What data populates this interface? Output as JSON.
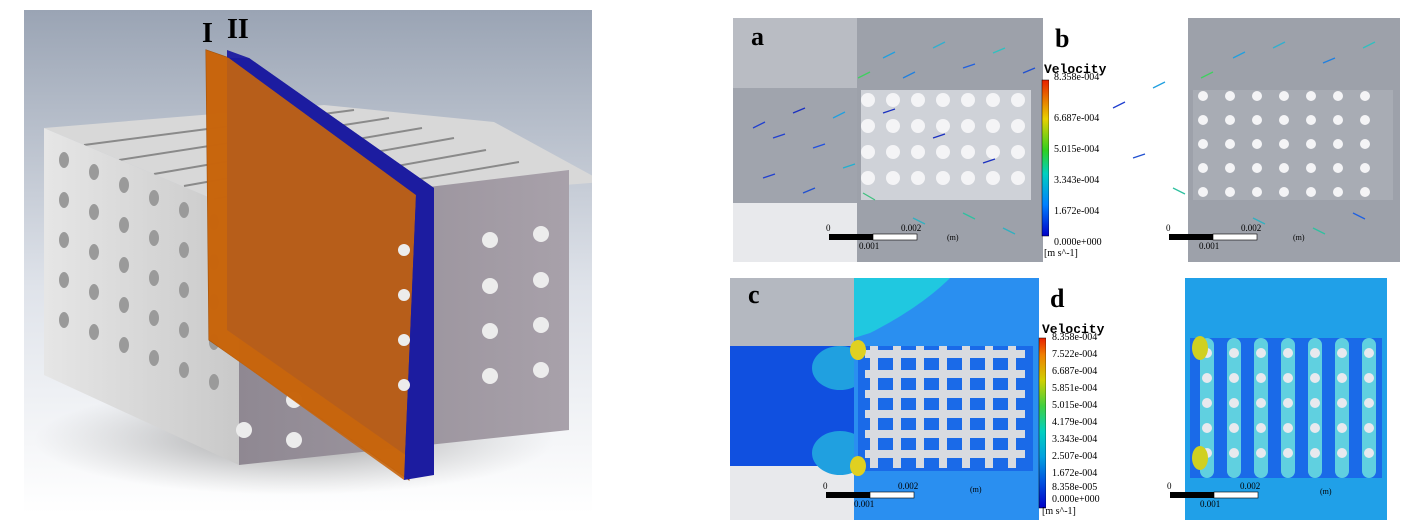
{
  "model3d": {
    "plane_labels": [
      "I",
      "II"
    ],
    "plane_colors": [
      "#c8650c",
      "#1c1ca0"
    ]
  },
  "panels": [
    {
      "letter": "a",
      "type": "vector"
    },
    {
      "letter": "b",
      "type": "vector"
    },
    {
      "letter": "c",
      "type": "contour"
    },
    {
      "letter": "d",
      "type": "contour"
    }
  ],
  "legend_top": {
    "title": "Velocity",
    "values": [
      "8.358e-004",
      "6.687e-004",
      "5.015e-004",
      "3.343e-004",
      "1.672e-004",
      "0.000e+000"
    ],
    "unit": "[m s^-1]"
  },
  "legend_bottom": {
    "title": "Velocity",
    "values": [
      "8.358e-004",
      "7.522e-004",
      "6.687e-004",
      "5.851e-004",
      "5.015e-004",
      "4.179e-004",
      "3.343e-004",
      "2.507e-004",
      "1.672e-004",
      "8.358e-005",
      "0.000e+000"
    ],
    "unit": "[m s^-1]"
  },
  "scale_bar": {
    "start": "0",
    "mid": "0.001",
    "end": "0.002",
    "unit": "(m)"
  }
}
